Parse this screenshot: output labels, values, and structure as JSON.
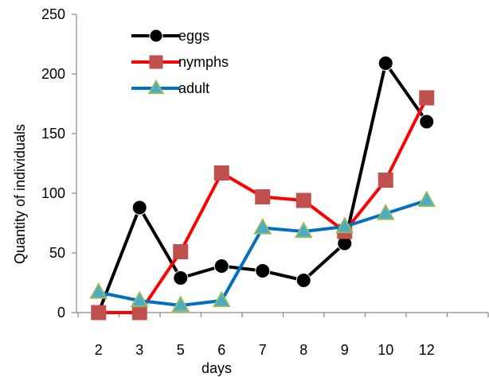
{
  "chart_data": {
    "type": "line",
    "xlabel": "days",
    "ylabel": "Quantity of individuals",
    "ylim": [
      0,
      250
    ],
    "y_ticks": [
      0,
      50,
      100,
      150,
      200,
      250
    ],
    "categories": [
      "2",
      "3",
      "5",
      "6",
      "7",
      "8",
      "9",
      "10",
      "12"
    ],
    "grid": false,
    "legend_position": "top-left",
    "series": [
      {
        "name": "eggs",
        "color": "#000000",
        "marker": "circle",
        "values": [
          0,
          88,
          29,
          39,
          35,
          27,
          58,
          209,
          160
        ]
      },
      {
        "name": "nymphs",
        "color": "#ff0000",
        "marker": "square",
        "values": [
          0,
          0,
          51,
          117,
          97,
          94,
          68,
          111,
          180
        ]
      },
      {
        "name": "adult",
        "color": "#0070c0",
        "marker": "triangle",
        "values": [
          17,
          10,
          6,
          10,
          71,
          68,
          72,
          83,
          94
        ]
      }
    ]
  }
}
